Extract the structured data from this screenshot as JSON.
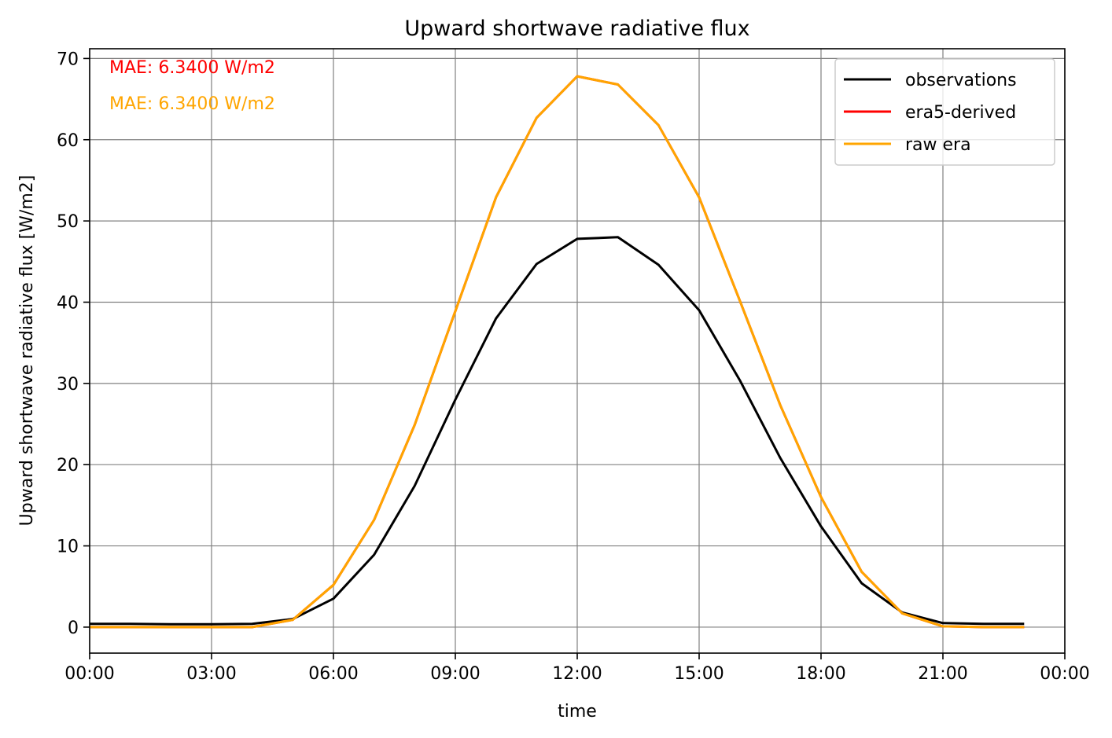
{
  "chart_data": {
    "type": "line",
    "title": "Upward shortwave radiative flux",
    "xlabel": "time",
    "ylabel": "Upward shortwave radiative flux [W/m2]",
    "x_unit": "hour",
    "x": [
      0,
      1,
      2,
      3,
      4,
      5,
      6,
      7,
      8,
      9,
      10,
      11,
      12,
      13,
      14,
      15,
      16,
      17,
      18,
      19,
      20,
      21,
      22,
      23
    ],
    "xlim": [
      0,
      24
    ],
    "ylim": [
      -3.2,
      71.2
    ],
    "xticks": [
      0,
      3,
      6,
      9,
      12,
      15,
      18,
      21,
      24
    ],
    "xtick_labels": [
      "00:00",
      "03:00",
      "06:00",
      "09:00",
      "12:00",
      "15:00",
      "18:00",
      "21:00",
      "00:00"
    ],
    "yticks": [
      0,
      10,
      20,
      30,
      40,
      50,
      60,
      70
    ],
    "ytick_labels": [
      "0",
      "10",
      "20",
      "30",
      "40",
      "50",
      "60",
      "70"
    ],
    "grid": true,
    "legend_position": "top-right",
    "series": [
      {
        "name": "observations",
        "color": "#000000",
        "values": [
          0.4,
          0.4,
          0.35,
          0.35,
          0.4,
          1.0,
          3.5,
          8.9,
          17.4,
          28.0,
          38.0,
          44.7,
          47.8,
          48.0,
          44.6,
          39.0,
          30.4,
          20.8,
          12.4,
          5.4,
          1.8,
          0.5,
          0.4,
          0.4
        ]
      },
      {
        "name": "era5-derived",
        "color": "#ff0000",
        "values": [
          0.0,
          0.0,
          0.0,
          0.0,
          0.0,
          0.9,
          5.2,
          13.2,
          24.9,
          38.9,
          52.9,
          62.7,
          67.8,
          66.8,
          61.8,
          52.9,
          40.2,
          27.3,
          16.0,
          6.8,
          1.7,
          0.1,
          0.0,
          0.0
        ]
      },
      {
        "name": "raw era",
        "color": "#ffa500",
        "values": [
          0.0,
          0.0,
          0.0,
          0.0,
          0.0,
          0.9,
          5.2,
          13.2,
          24.9,
          38.9,
          52.9,
          62.7,
          67.8,
          66.8,
          61.8,
          52.9,
          40.2,
          27.3,
          16.0,
          6.8,
          1.7,
          0.1,
          0.0,
          0.0
        ]
      }
    ],
    "annotations": [
      {
        "text": "MAE: 6.3400 W/m2",
        "color": "#ff0000"
      },
      {
        "text": "MAE: 6.3400 W/m2",
        "color": "#ffa500"
      }
    ]
  }
}
